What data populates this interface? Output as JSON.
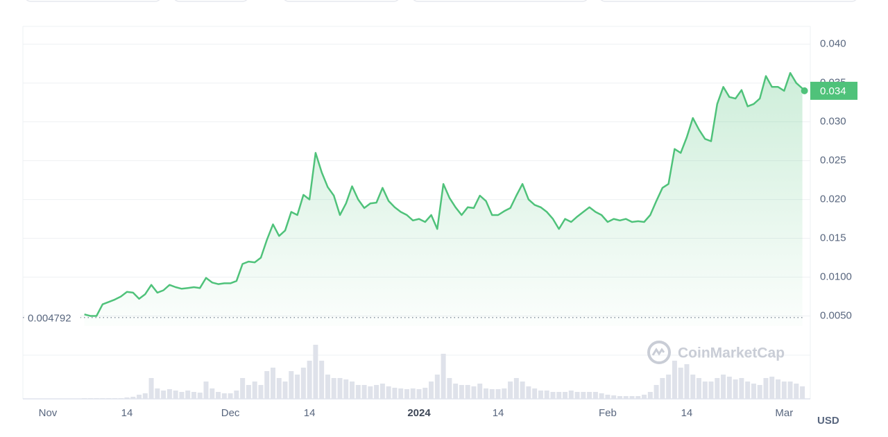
{
  "chart_data": {
    "type": "line",
    "x": [
      6,
      7,
      8,
      9,
      10,
      11,
      12,
      13,
      14,
      15,
      16,
      17,
      18,
      19,
      20,
      21,
      22,
      23,
      24,
      25,
      26,
      27,
      28,
      29,
      30,
      31,
      32,
      33,
      34,
      35,
      36,
      37,
      38,
      39,
      40,
      41,
      42,
      43,
      44,
      45,
      46,
      47,
      48,
      49,
      50,
      51,
      52,
      53,
      54,
      55,
      56,
      57,
      58,
      59,
      60,
      61,
      62,
      63,
      64,
      65,
      66,
      67,
      68,
      69,
      70,
      71,
      72,
      73,
      74,
      75,
      76,
      77,
      78,
      79,
      80,
      81,
      82,
      83,
      84,
      85,
      86,
      87,
      88,
      89,
      90,
      91,
      92,
      93,
      94,
      95,
      96,
      97,
      98,
      99,
      100,
      101,
      102,
      103,
      104,
      105,
      106,
      107,
      108,
      109,
      110,
      111,
      112,
      113,
      114,
      115,
      116,
      117,
      118,
      119,
      120,
      121,
      122,
      123,
      124
    ],
    "series": [
      {
        "name": "Price",
        "color": "#4fc27a",
        "values": [
          0.0052,
          0.005,
          0.005,
          0.0065,
          0.0068,
          0.0071,
          0.0075,
          0.0081,
          0.008,
          0.0072,
          0.0078,
          0.009,
          0.008,
          0.0083,
          0.009,
          0.0087,
          0.0085,
          0.0086,
          0.0087,
          0.0086,
          0.0099,
          0.0093,
          0.0091,
          0.0092,
          0.0092,
          0.0095,
          0.0117,
          0.012,
          0.0119,
          0.0125,
          0.0148,
          0.0168,
          0.0153,
          0.016,
          0.0184,
          0.018,
          0.0206,
          0.02,
          0.026,
          0.0235,
          0.0216,
          0.0205,
          0.018,
          0.0195,
          0.0217,
          0.02,
          0.0189,
          0.0195,
          0.0196,
          0.0215,
          0.0198,
          0.019,
          0.0184,
          0.018,
          0.0173,
          0.0175,
          0.0171,
          0.018,
          0.0162,
          0.022,
          0.0202,
          0.019,
          0.018,
          0.019,
          0.0189,
          0.0205,
          0.0198,
          0.018,
          0.018,
          0.0185,
          0.0189,
          0.0205,
          0.022,
          0.02,
          0.0193,
          0.019,
          0.0184,
          0.0175,
          0.0162,
          0.0175,
          0.0171,
          0.0178,
          0.0184,
          0.019,
          0.0184,
          0.018,
          0.0171,
          0.0175,
          0.0173,
          0.0175,
          0.0171,
          0.0172,
          0.0171,
          0.018,
          0.0198,
          0.0215,
          0.022,
          0.0265,
          0.026,
          0.028,
          0.0305,
          0.029,
          0.0278,
          0.0275,
          0.0323,
          0.0345,
          0.0332,
          0.033,
          0.0341,
          0.032,
          0.0323,
          0.033,
          0.0359,
          0.0345,
          0.0345,
          0.034,
          0.0363,
          0.035,
          0.0343
        ]
      },
      {
        "name": "Volume",
        "color": "#dfe2ea",
        "values": [
          1,
          1,
          1,
          1,
          1,
          1,
          1,
          2,
          3,
          6,
          8,
          30,
          15,
          12,
          14,
          12,
          10,
          12,
          10,
          9,
          25,
          15,
          10,
          8,
          8,
          12,
          30,
          20,
          25,
          20,
          40,
          45,
          30,
          25,
          40,
          35,
          45,
          55,
          78,
          55,
          35,
          30,
          30,
          28,
          25,
          20,
          20,
          18,
          20,
          22,
          18,
          16,
          15,
          14,
          15,
          14,
          16,
          25,
          35,
          65,
          30,
          22,
          20,
          20,
          18,
          22,
          15,
          14,
          14,
          15,
          25,
          30,
          25,
          18,
          15,
          12,
          12,
          10,
          10,
          10,
          12,
          10,
          10,
          10,
          10,
          8,
          6,
          5,
          4,
          4,
          4,
          4,
          6,
          10,
          20,
          30,
          35,
          55,
          45,
          50,
          35,
          30,
          25,
          25,
          30,
          35,
          32,
          28,
          30,
          25,
          22,
          20,
          30,
          32,
          28,
          25,
          25,
          22,
          18
        ]
      }
    ],
    "xlim": [
      -4.1,
      125.3
    ],
    "xticks": [
      {
        "value": 0,
        "label": "Nov"
      },
      {
        "value": 13,
        "label": "14"
      },
      {
        "value": 30,
        "label": "Dec"
      },
      {
        "value": 43,
        "label": "14"
      },
      {
        "value": 61,
        "label": "2024"
      },
      {
        "value": 74,
        "label": "14"
      },
      {
        "value": 92,
        "label": "Feb"
      },
      {
        "value": 105,
        "label": "14"
      },
      {
        "value": 121,
        "label": "Mar"
      }
    ],
    "ylim": [
      0.0037,
      0.0423
    ],
    "yticks": [
      {
        "value": 0.04,
        "label": "0.040"
      },
      {
        "value": 0.035,
        "label": "0.035"
      },
      {
        "value": 0.03,
        "label": "0.030"
      },
      {
        "value": 0.025,
        "label": "0.025"
      },
      {
        "value": 0.02,
        "label": "0.020"
      },
      {
        "value": 0.015,
        "label": "0.015"
      },
      {
        "value": 0.01,
        "label": "0.0100"
      },
      {
        "value": 0.005,
        "label": "0.0050"
      }
    ],
    "grid": true,
    "start_price": 0.004792,
    "current_price": 0.034,
    "currency": "USD",
    "watermark": "CoinMarketCap"
  }
}
